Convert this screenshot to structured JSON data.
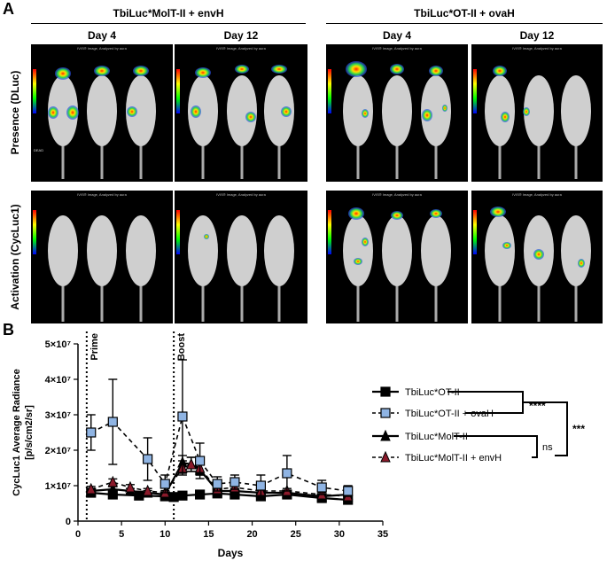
{
  "panel_a": {
    "letter": "A",
    "groups": [
      {
        "title": "TbiLuc*MolT-II + envH",
        "days": [
          "Day 4",
          "Day 12"
        ]
      },
      {
        "title": "TbiLuc*OT-II + ovaH",
        "days": [
          "Day 4",
          "Day 12"
        ]
      }
    ],
    "row_labels": [
      "Presence (DLuc)",
      "Activation (CycLuc1)"
    ],
    "image_header_text": "IVIS® Image, Analyzed by aura",
    "side_label": "DEAD",
    "image_panel_count": 8
  },
  "panel_b": {
    "letter": "B",
    "annotations": {
      "prime": "Prime",
      "boost": "Boost"
    },
    "significance": {
      "ovaH_vs_OTII": "****",
      "envH_vs_MolTII": "ns",
      "between_groups": "***"
    }
  },
  "colors": {
    "light_blue": "#8fb4e3",
    "dark_red": "#8b1a2b",
    "black": "#000000"
  },
  "chart_data": {
    "type": "line",
    "title": "",
    "xlabel": "Days",
    "ylabel": "CycLuc1 Average Radiance\n[p/s/cm2/sr]",
    "ylabel_line1": "CycLuc1 Average Radiance",
    "ylabel_line2": "[p/s/cm2/sr]",
    "xlim": [
      0,
      35
    ],
    "ylim": [
      0,
      50000000
    ],
    "xticks": [
      "0",
      "5",
      "10",
      "15",
      "20",
      "25",
      "30",
      "35"
    ],
    "yticks": [
      "0",
      "1×10⁷",
      "2×10⁷",
      "3×10⁷",
      "4×10⁷",
      "5×10⁷"
    ],
    "vertical_lines": [
      1,
      11
    ],
    "series": [
      {
        "name": "TbiLuc*OT-II",
        "marker": "square",
        "fill": "#000000",
        "dashed": false,
        "x": [
          1.5,
          4,
          7,
          10,
          11,
          12,
          14,
          16,
          18,
          21,
          24,
          28,
          31
        ],
        "y": [
          8000000,
          7500000,
          7200000,
          7000000,
          6800000,
          7200000,
          7500000,
          7800000,
          7500000,
          7000000,
          7500000,
          6500000,
          6000000
        ],
        "err": [
          600000,
          500000,
          500000,
          400000,
          400000,
          500000,
          500000,
          500000,
          500000,
          400000,
          500000,
          400000,
          400000
        ]
      },
      {
        "name": "TbiLuc*OT-II + ovaH",
        "marker": "square",
        "fill": "#8fb4e3",
        "dashed": true,
        "x": [
          1.5,
          4,
          8,
          10,
          12,
          14,
          16,
          18,
          21,
          24,
          28,
          31
        ],
        "y": [
          25000000,
          28000000,
          17500000,
          10500000,
          29500000,
          17000000,
          10500000,
          11000000,
          10000000,
          13500000,
          9500000,
          8500000
        ],
        "err": [
          5000000,
          12000000,
          6000000,
          2500000,
          16000000,
          5000000,
          2000000,
          2000000,
          3000000,
          5000000,
          2000000,
          1500000
        ]
      },
      {
        "name": "TbiLuc*MolT-II",
        "marker": "triangle",
        "fill": "#000000",
        "dashed": false,
        "x": [
          1.5,
          4,
          6,
          8,
          10,
          12,
          13,
          14,
          16,
          18,
          21,
          24,
          28,
          31
        ],
        "y": [
          8500000,
          9000000,
          8500000,
          8000000,
          7500000,
          16500000,
          16000000,
          14500000,
          8500000,
          8500000,
          8000000,
          8000000,
          7000000,
          7500000
        ],
        "err": [
          700000,
          700000,
          700000,
          600000,
          600000,
          2000000,
          2000000,
          1500000,
          800000,
          700000,
          700000,
          700000,
          600000,
          600000
        ]
      },
      {
        "name": "TbiLuc*MolT-II + envH",
        "marker": "triangle",
        "fill": "#8b1a2b",
        "dashed": true,
        "x": [
          1.5,
          4,
          6,
          8,
          10,
          12,
          13,
          14,
          16,
          18,
          21,
          24,
          28,
          31
        ],
        "y": [
          9000000,
          11000000,
          9500000,
          8500000,
          8000000,
          15000000,
          16000000,
          15000000,
          9000000,
          9500000,
          8500000,
          8500000,
          7500000,
          7000000
        ],
        "err": [
          800000,
          900000,
          800000,
          700000,
          600000,
          2000000,
          2000000,
          2000000,
          900000,
          800000,
          700000,
          700000,
          600000,
          600000
        ]
      }
    ]
  }
}
